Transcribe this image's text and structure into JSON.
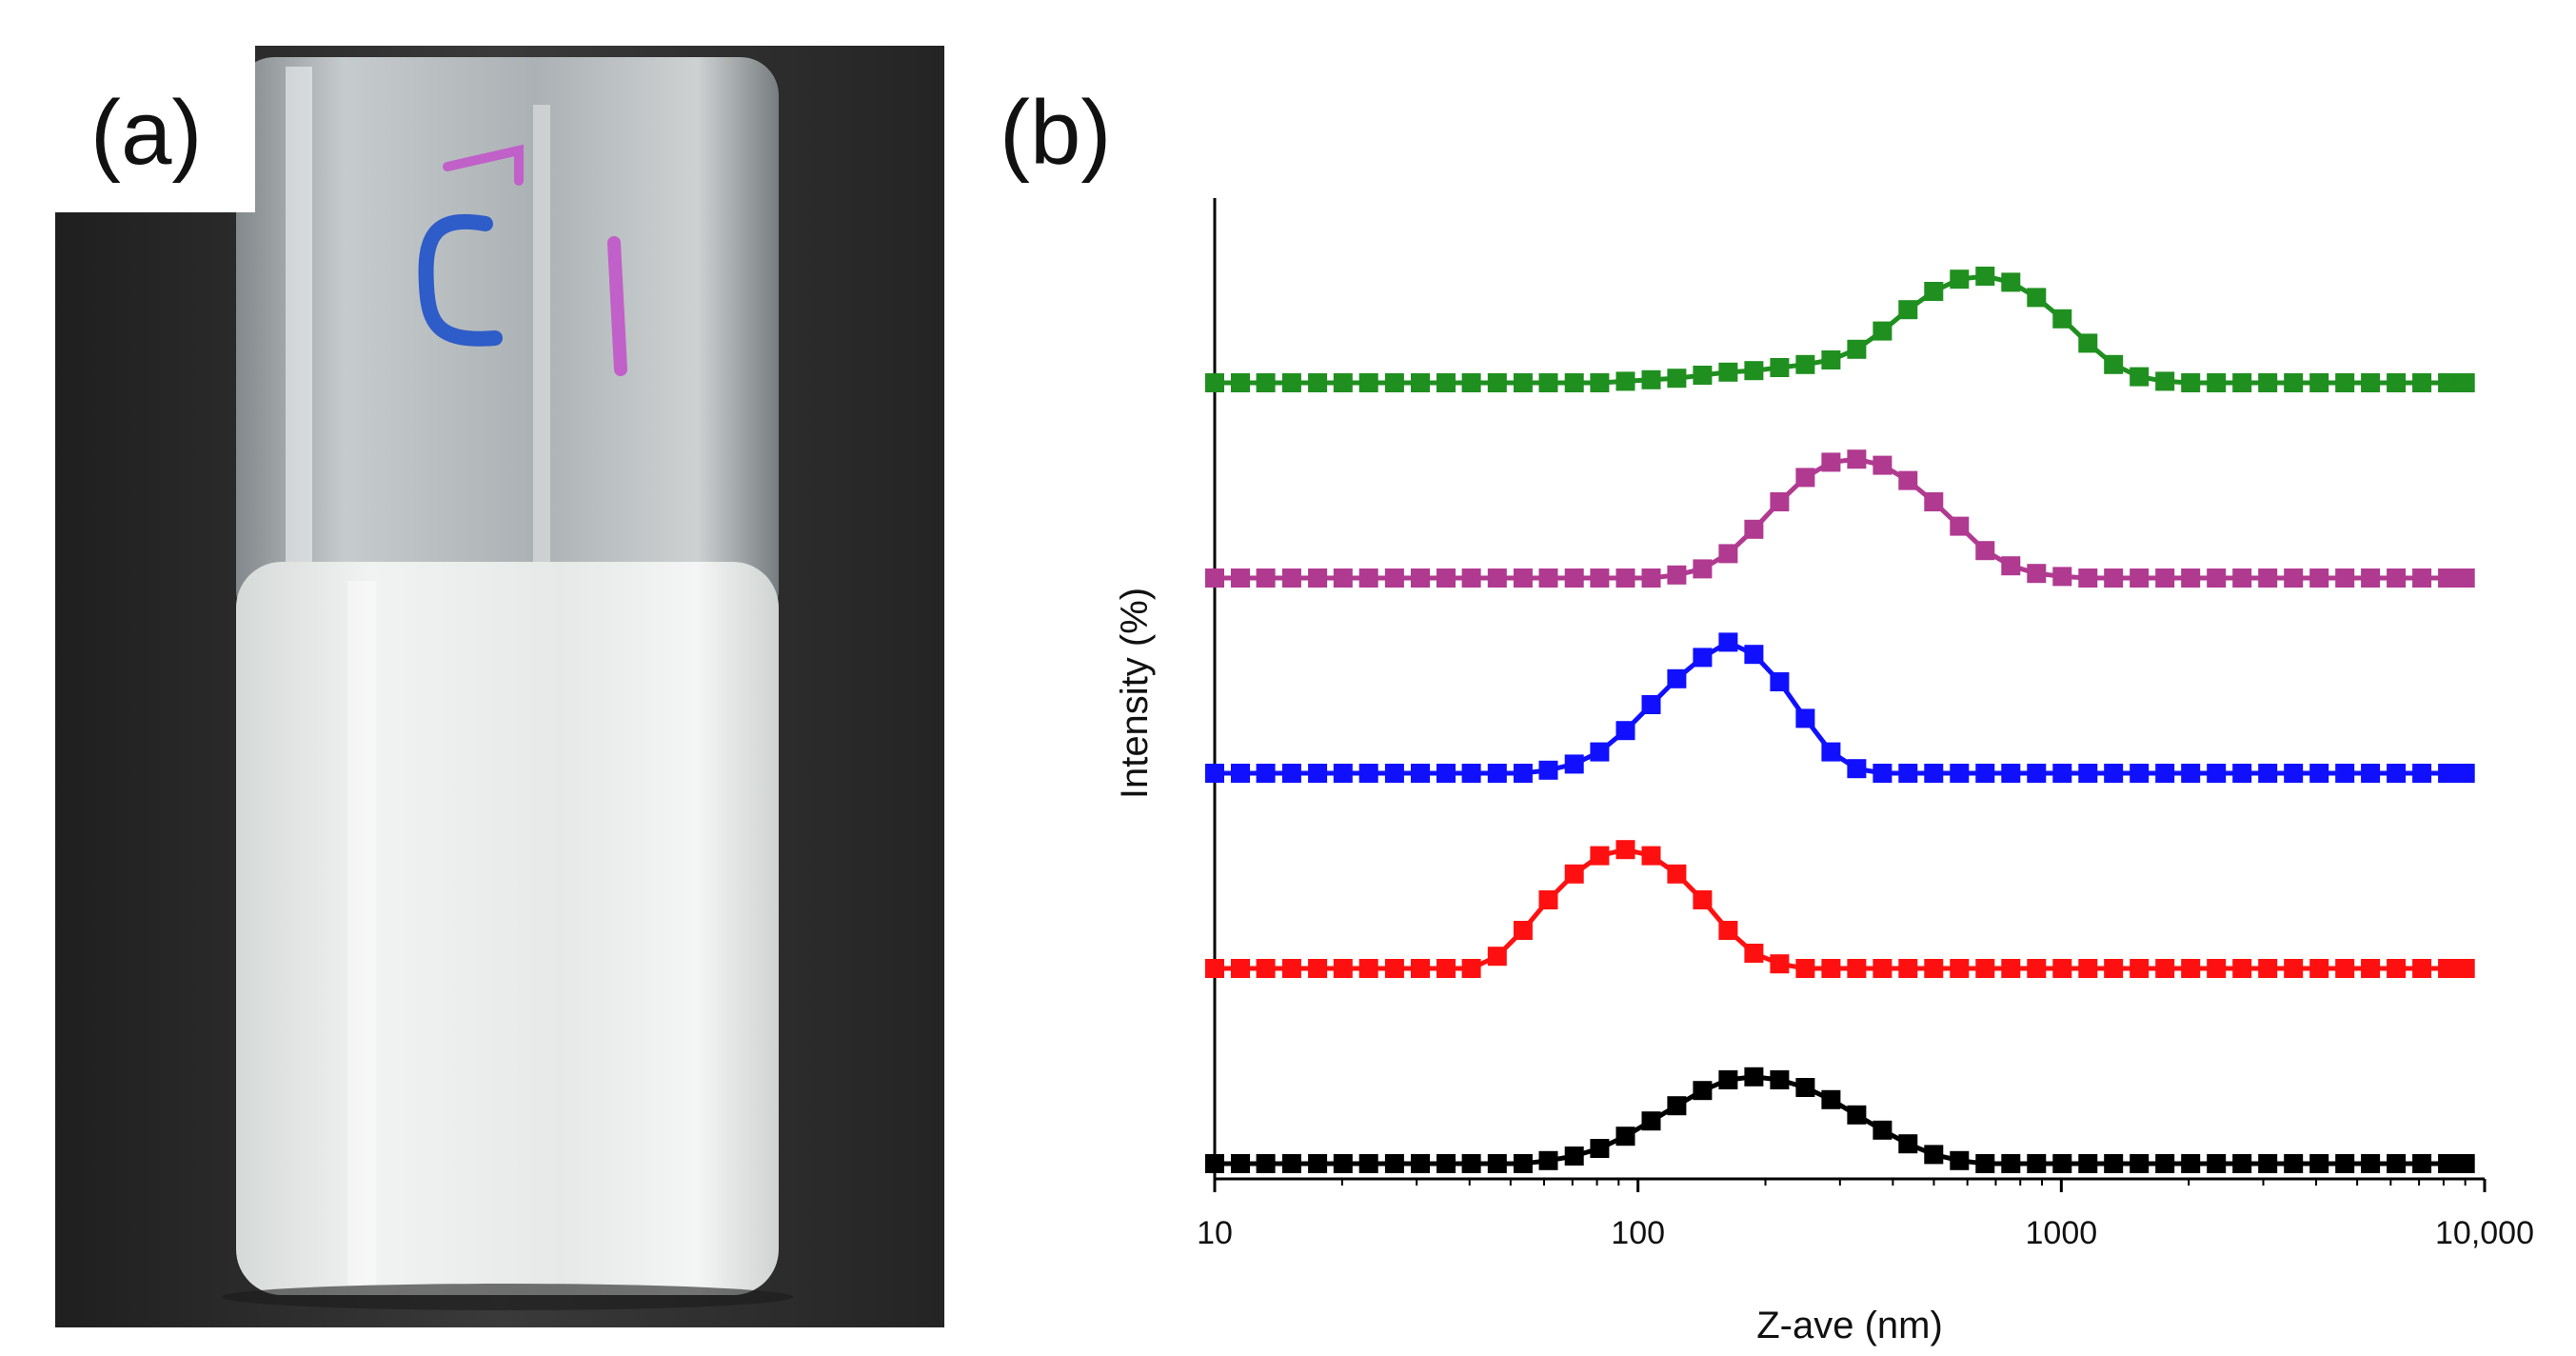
{
  "figure": {
    "panel_a_label": "(a)",
    "panel_b_label": "(b)",
    "photo": {
      "subject": "glass vial containing white emulsion",
      "marker_text": "C1",
      "colors": {
        "background": "#2c2c2c",
        "liquid": "#e9ecea",
        "glass": "#c9cfd1",
        "marker_blue": "#2e5cc8",
        "marker_pink": "#c060c8"
      }
    }
  },
  "chart_data": {
    "type": "line",
    "xscale": "log",
    "xlim": [
      10,
      10000
    ],
    "xlabel": "Z-ave (nm)",
    "ylabel": "Intensity (%)",
    "xticks": [
      10,
      100,
      1000,
      10000
    ],
    "xtick_labels": [
      "10",
      "100",
      "1000",
      "10,000"
    ],
    "stacked_offset": true,
    "grid": false,
    "x": [
      10,
      11.5,
      13.2,
      15.2,
      17.5,
      20.1,
      23.1,
      26.6,
      30.6,
      35.2,
      40.4,
      46.5,
      53.5,
      61.4,
      70.7,
      81.2,
      93.4,
      107.4,
      123.5,
      142.0,
      163.3,
      187.8,
      216.0,
      248.4,
      285.7,
      328.5,
      377.8,
      434.4,
      499.6,
      574.5,
      660.7,
      759.8,
      873.8,
      1004.8,
      1155.6,
      1328.9,
      1528.2,
      1757.5,
      2021.1,
      2324.2,
      2672.8,
      3073.8,
      3534.9,
      4065.1,
      4674.9,
      5376.1,
      6182.5,
      7109.9,
      8176.4,
      9000
    ],
    "series": [
      {
        "name": "black",
        "color": "#000000",
        "baseline": 0,
        "values": [
          0,
          0,
          0,
          0,
          0,
          0,
          0,
          0,
          0,
          0,
          0,
          0,
          0,
          0.02,
          0.05,
          0.1,
          0.18,
          0.28,
          0.38,
          0.48,
          0.55,
          0.57,
          0.55,
          0.5,
          0.42,
          0.32,
          0.22,
          0.13,
          0.06,
          0.02,
          0,
          0,
          0,
          0,
          0,
          0,
          0,
          0,
          0,
          0,
          0,
          0,
          0,
          0,
          0,
          0,
          0,
          0,
          0,
          0
        ]
      },
      {
        "name": "red",
        "color": "#ff1010",
        "baseline": 1,
        "values": [
          0,
          0,
          0,
          0,
          0,
          0,
          0,
          0,
          0,
          0,
          0,
          0.08,
          0.25,
          0.45,
          0.62,
          0.74,
          0.78,
          0.74,
          0.62,
          0.45,
          0.25,
          0.1,
          0.03,
          0,
          0,
          0,
          0,
          0,
          0,
          0,
          0,
          0,
          0,
          0,
          0,
          0,
          0,
          0,
          0,
          0,
          0,
          0,
          0,
          0,
          0,
          0,
          0,
          0,
          0,
          0
        ]
      },
      {
        "name": "blue",
        "color": "#1010ff",
        "baseline": 2,
        "values": [
          0,
          0,
          0,
          0,
          0,
          0,
          0,
          0,
          0,
          0,
          0,
          0,
          0,
          0.02,
          0.06,
          0.14,
          0.28,
          0.45,
          0.62,
          0.76,
          0.86,
          0.78,
          0.6,
          0.36,
          0.14,
          0.03,
          0,
          0,
          0,
          0,
          0,
          0,
          0,
          0,
          0,
          0,
          0,
          0,
          0,
          0,
          0,
          0,
          0,
          0,
          0,
          0,
          0,
          0,
          0,
          0
        ]
      },
      {
        "name": "magenta",
        "color": "#b03a90",
        "baseline": 3,
        "values": [
          0,
          0,
          0,
          0,
          0,
          0,
          0,
          0,
          0,
          0,
          0,
          0,
          0,
          0,
          0,
          0,
          0,
          0,
          0.02,
          0.06,
          0.16,
          0.32,
          0.5,
          0.66,
          0.76,
          0.78,
          0.74,
          0.64,
          0.5,
          0.34,
          0.18,
          0.08,
          0.03,
          0.01,
          0,
          0,
          0,
          0,
          0,
          0,
          0,
          0,
          0,
          0,
          0,
          0,
          0,
          0,
          0,
          0
        ]
      },
      {
        "name": "green",
        "color": "#1f8f1f",
        "baseline": 4,
        "values": [
          0,
          0,
          0,
          0,
          0,
          0,
          0,
          0,
          0,
          0,
          0,
          0,
          0,
          0,
          0,
          0,
          0.01,
          0.02,
          0.03,
          0.05,
          0.07,
          0.08,
          0.1,
          0.12,
          0.15,
          0.22,
          0.34,
          0.48,
          0.6,
          0.68,
          0.7,
          0.66,
          0.56,
          0.42,
          0.26,
          0.12,
          0.04,
          0.01,
          0,
          0,
          0,
          0,
          0,
          0,
          0,
          0,
          0,
          0,
          0,
          0
        ]
      }
    ]
  }
}
